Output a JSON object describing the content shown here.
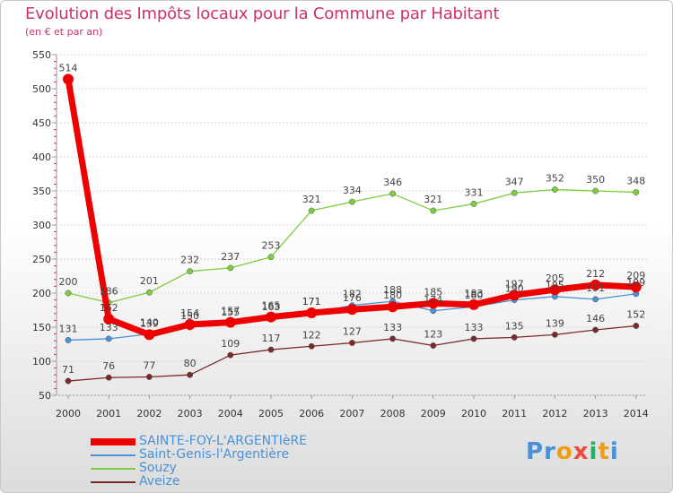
{
  "title": "Evolution des Impôts locaux pour la Commune par Habitant",
  "subtitle": "(en € et par an)",
  "logo": {
    "letters": [
      "P",
      "r",
      "o",
      "x",
      "i",
      "t",
      "i"
    ],
    "colors": [
      "#4a90d9",
      "#4a90d9",
      "#f39c12",
      "#e74c3c",
      "#27ae60",
      "#f39c12",
      "#4a90d9"
    ]
  },
  "chart_data": {
    "type": "line",
    "title": "Evolution des Impôts locaux pour la Commune par Habitant",
    "subtitle": "(en € et par an)",
    "xlabel": "",
    "ylabel": "",
    "x": [
      "2000",
      "2001",
      "2002",
      "2003",
      "2004",
      "2005",
      "2006",
      "2007",
      "2008",
      "2009",
      "2010",
      "2011",
      "2012",
      "2013",
      "2014"
    ],
    "ylim": [
      50,
      550
    ],
    "yticks": [
      50,
      100,
      150,
      200,
      250,
      300,
      350,
      400,
      450,
      500,
      550
    ],
    "grid": true,
    "legend_position": "bottom-left",
    "series": [
      {
        "name": "SAINTE-FOY-L'ARGENTIèRE",
        "color": "#ee0000",
        "values": [
          514,
          162,
          139,
          154,
          157,
          165,
          171,
          176,
          180,
          185,
          183,
          197,
          205,
          212,
          209
        ],
        "labels": [
          "514",
          "162",
          "139",
          "154",
          "157",
          "165",
          "171",
          "176",
          "180",
          "185",
          "183",
          "197",
          "205",
          "212",
          "209"
        ],
        "emphasis": true
      },
      {
        "name": "Saint-Genis-l'Argentière",
        "color": "#4a90d9",
        "values": [
          131,
          133,
          140,
          150,
          155,
          163,
          171,
          182,
          188,
          174,
          180,
          190,
          195,
          191,
          199
        ],
        "labels": [
          "131",
          "133",
          "140",
          "150",
          "155",
          "163",
          "171",
          "182",
          "188",
          "174",
          "180",
          "190",
          "195",
          "191",
          "199"
        ],
        "emphasis": false
      },
      {
        "name": "Souzy",
        "color": "#80cc40",
        "values": [
          200,
          186,
          201,
          232,
          237,
          253,
          321,
          334,
          346,
          321,
          331,
          347,
          352,
          350,
          348
        ],
        "labels": [
          "200",
          "186",
          "201",
          "232",
          "237",
          "253",
          "321",
          "334",
          "346",
          "321",
          "331",
          "347",
          "352",
          "350",
          "348"
        ],
        "emphasis": false
      },
      {
        "name": "Aveize",
        "color": "#7a2a2a",
        "values": [
          71,
          76,
          77,
          80,
          109,
          117,
          122,
          127,
          133,
          123,
          133,
          135,
          139,
          146,
          152
        ],
        "labels": [
          "71",
          "76",
          "77",
          "80",
          "109",
          "117",
          "122",
          "127",
          "133",
          "123",
          "133",
          "135",
          "139",
          "146",
          "152"
        ],
        "emphasis": false
      }
    ]
  }
}
